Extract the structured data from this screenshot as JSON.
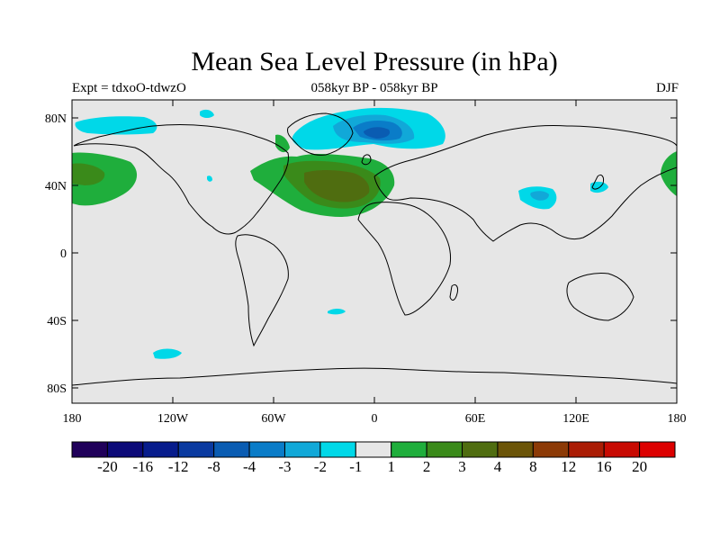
{
  "title": "Mean Sea Level Pressure (in hPa)",
  "subtitle_left": "Expt = tdxoO-tdwzO",
  "subtitle_center": "058kyr BP - 058kyr BP",
  "subtitle_right": "DJF",
  "axes": {
    "lat_ticks": [
      {
        "lat": 80,
        "label": "80N"
      },
      {
        "lat": 40,
        "label": "40N"
      },
      {
        "lat": 0,
        "label": "0"
      },
      {
        "lat": -40,
        "label": "40S"
      },
      {
        "lat": -80,
        "label": "80S"
      }
    ],
    "lon_ticks": [
      {
        "lon": -180,
        "label": "180"
      },
      {
        "lon": -120,
        "label": "120W"
      },
      {
        "lon": -60,
        "label": "60W"
      },
      {
        "lon": 0,
        "label": "0"
      },
      {
        "lon": 60,
        "label": "60E"
      },
      {
        "lon": 120,
        "label": "120E"
      },
      {
        "lon": 180,
        "label": "180"
      }
    ]
  },
  "colorbar": {
    "labels": [
      "-20",
      "-16",
      "-12",
      "-8",
      "-4",
      "-3",
      "-2",
      "-1",
      "1",
      "2",
      "3",
      "4",
      "8",
      "12",
      "16",
      "20"
    ],
    "colors": [
      "#20005a",
      "#0c0a78",
      "#071c8c",
      "#0a3aa0",
      "#0a5cb2",
      "#0a7cc8",
      "#11a8d8",
      "#00d8e8",
      "#e6e6e6",
      "#1fae3c",
      "#3a8a1a",
      "#4f6d10",
      "#6b5408",
      "#8c3a06",
      "#aa1c04",
      "#c80a02",
      "#dc0000"
    ]
  },
  "colors": {
    "ocean_background": "#e6e6e6",
    "coastline": "#000000"
  }
}
